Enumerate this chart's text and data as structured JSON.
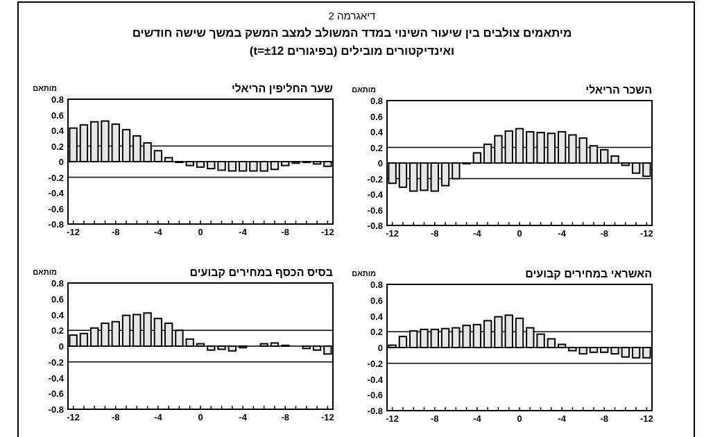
{
  "chart_data": [
    {
      "type": "bar",
      "title": "שער החליפין הריאלי",
      "ylabel": "מותאם",
      "annotations": [
        "דיאגרמה 2",
        "מיתאמים צולבים בין שיעור השינוי במדד המשולב למצב המשק במשך שישה חודשים",
        "ואינדיקטורים מובילים (בפיגורים t=±12)"
      ],
      "categories": [
        "-12",
        null,
        null,
        null,
        "-8",
        null,
        null,
        null,
        "-4",
        null,
        null,
        null,
        "0",
        null,
        null,
        null,
        "-4",
        null,
        null,
        null,
        "-8",
        null,
        null,
        null,
        "-12"
      ],
      "values": [
        0.43,
        0.47,
        0.51,
        0.52,
        0.48,
        0.41,
        0.33,
        0.24,
        0.14,
        0.05,
        -0.01,
        -0.05,
        -0.07,
        -0.09,
        -0.11,
        -0.12,
        -0.12,
        -0.12,
        -0.12,
        -0.1,
        -0.05,
        -0.02,
        -0.01,
        -0.03,
        -0.06
      ],
      "color": "#e6e6e6",
      "ylim": [
        -0.8,
        0.8
      ],
      "yticks": [
        -0.8,
        -0.6,
        -0.4,
        -0.2,
        0,
        0.2,
        0.4,
        0.6,
        0.8
      ],
      "ref_lines": [
        {
          "axis": "y",
          "value": 0.2,
          "color": "#000000"
        },
        {
          "axis": "y",
          "value": 0,
          "color": "#000000"
        },
        {
          "axis": "y",
          "value": -0.2,
          "color": "#000000"
        }
      ]
    },
    {
      "type": "bar",
      "title": "השכר הריאלי",
      "ylabel": "מותאם",
      "categories": [
        "-12",
        null,
        null,
        null,
        "-8",
        null,
        null,
        null,
        "-4",
        null,
        null,
        null,
        "0",
        null,
        null,
        null,
        "-4",
        null,
        null,
        null,
        "-8",
        null,
        null,
        null,
        "-12"
      ],
      "values": [
        -0.26,
        -0.31,
        -0.36,
        -0.35,
        -0.36,
        -0.29,
        -0.2,
        -0.01,
        0.13,
        0.24,
        0.35,
        0.41,
        0.44,
        0.4,
        0.39,
        0.38,
        0.4,
        0.36,
        0.32,
        0.22,
        0.17,
        0.09,
        -0.03,
        -0.13,
        -0.17
      ],
      "color": "#e6e6e6",
      "ylim": [
        -0.8,
        0.8
      ],
      "yticks": [
        -0.8,
        -0.6,
        -0.4,
        -0.2,
        0,
        0.2,
        0.4,
        0.6,
        0.8
      ],
      "ref_lines": [
        {
          "axis": "y",
          "value": 0.2,
          "color": "#000000"
        },
        {
          "axis": "y",
          "value": 0,
          "color": "#000000"
        },
        {
          "axis": "y",
          "value": -0.2,
          "color": "#000000"
        }
      ]
    },
    {
      "type": "bar",
      "title": "בסיס הכסף במחירים קבועים",
      "ylabel": "מותאם",
      "categories": [
        "-12",
        null,
        null,
        null,
        "-8",
        null,
        null,
        null,
        "-4",
        null,
        null,
        null,
        "0",
        null,
        null,
        null,
        "-4",
        null,
        null,
        null,
        "-8",
        null,
        null,
        null,
        "-12"
      ],
      "values": [
        0.14,
        0.16,
        0.23,
        0.29,
        0.31,
        0.39,
        0.4,
        0.42,
        0.35,
        0.29,
        0.2,
        0.09,
        0.03,
        -0.05,
        -0.04,
        -0.06,
        -0.02,
        0,
        0.03,
        0.04,
        0.01,
        0,
        -0.03,
        -0.05,
        -0.1
      ],
      "color": "#e6e6e6",
      "ylim": [
        -0.8,
        0.8
      ],
      "yticks": [
        -0.8,
        -0.6,
        -0.4,
        -0.2,
        0,
        0.2,
        0.4,
        0.6,
        0.8
      ],
      "ref_lines": [
        {
          "axis": "y",
          "value": 0.2,
          "color": "#000000"
        },
        {
          "axis": "y",
          "value": 0,
          "color": "#000000"
        },
        {
          "axis": "y",
          "value": -0.2,
          "color": "#000000"
        }
      ]
    },
    {
      "type": "bar",
      "title": "האשראי במחירים קבועים",
      "ylabel": "מותאם",
      "categories": [
        "-12",
        null,
        null,
        null,
        "-8",
        null,
        null,
        null,
        "-4",
        null,
        null,
        null,
        "0",
        null,
        null,
        null,
        "-4",
        null,
        null,
        null,
        "-8",
        null,
        null,
        null,
        "-12"
      ],
      "values": [
        0.03,
        0.14,
        0.21,
        0.23,
        0.23,
        0.24,
        0.25,
        0.28,
        0.29,
        0.34,
        0.39,
        0.41,
        0.37,
        0.25,
        0.17,
        0.11,
        0.04,
        -0.04,
        -0.08,
        -0.06,
        -0.06,
        -0.08,
        -0.12,
        -0.13,
        -0.13
      ],
      "color": "#e6e6e6",
      "ylim": [
        -0.8,
        0.8
      ],
      "yticks": [
        -0.8,
        -0.6,
        -0.4,
        -0.2,
        0,
        0.2,
        0.4,
        0.6,
        0.8
      ],
      "ref_lines": [
        {
          "axis": "y",
          "value": 0.2,
          "color": "#000000"
        },
        {
          "axis": "y",
          "value": 0,
          "color": "#000000"
        },
        {
          "axis": "y",
          "value": -0.2,
          "color": "#000000"
        }
      ]
    }
  ]
}
